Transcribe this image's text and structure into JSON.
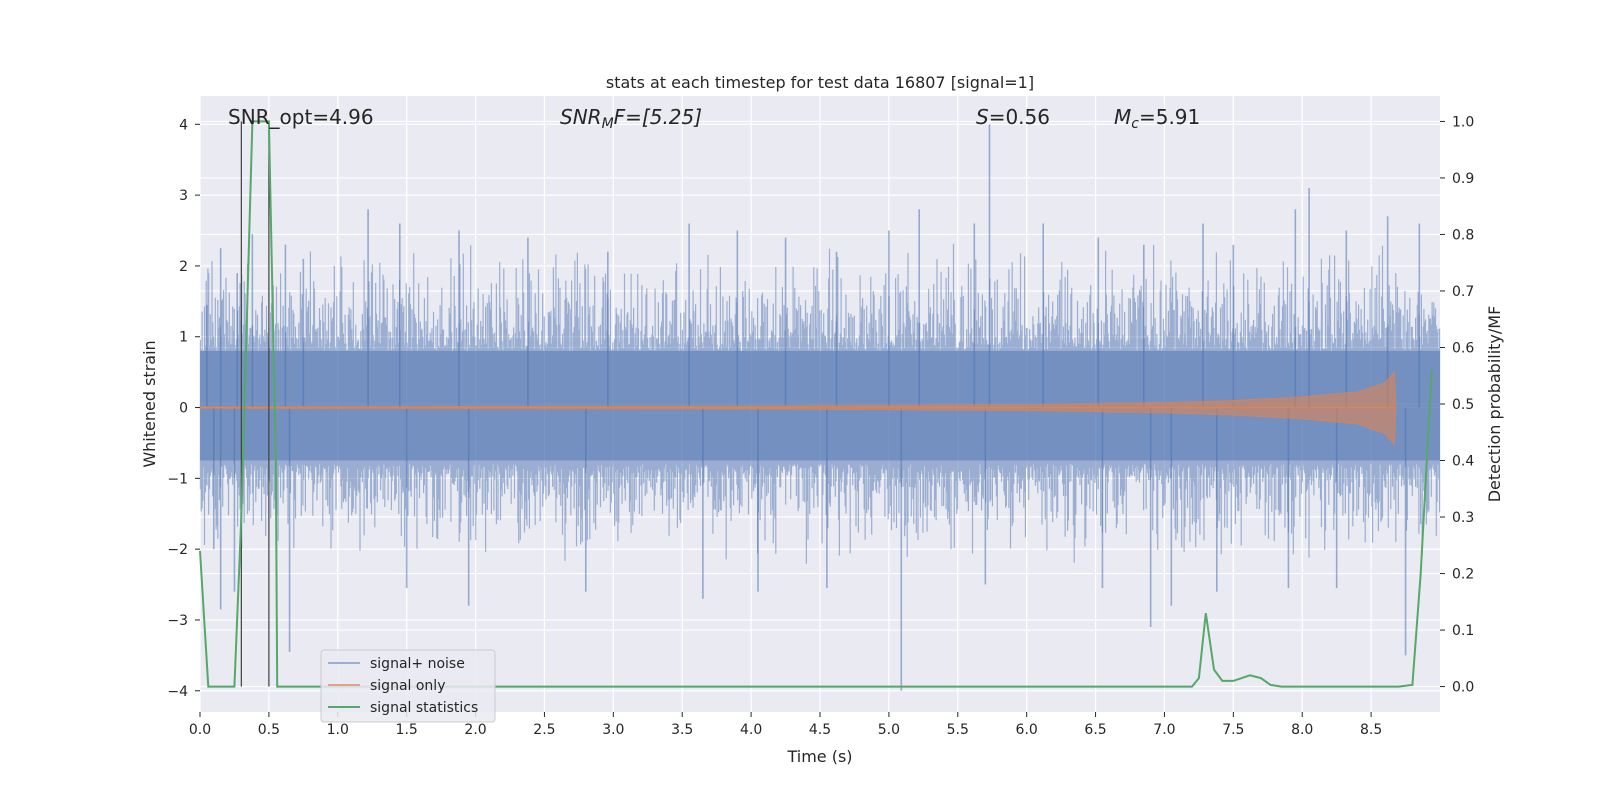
{
  "chart_data": {
    "type": "line",
    "title": "stats at each timestep for test data 16807 [signal=1]",
    "xlabel": "Time (s)",
    "ylabel": "Whitened strain",
    "y2label": "Detection probability/MF",
    "xlim": [
      0,
      9.0
    ],
    "ylim": [
      -4.3,
      4.4
    ],
    "y2lim": [
      -0.045,
      1.045
    ],
    "x_ticks": [
      "0.0",
      "0.5",
      "1.0",
      "1.5",
      "2.0",
      "2.5",
      "3.0",
      "3.5",
      "4.0",
      "4.5",
      "5.0",
      "5.5",
      "6.0",
      "6.5",
      "7.0",
      "7.5",
      "8.0",
      "8.5"
    ],
    "x_tick_values": [
      0,
      0.5,
      1,
      1.5,
      2,
      2.5,
      3,
      3.5,
      4,
      4.5,
      5,
      5.5,
      6,
      6.5,
      7,
      7.5,
      8,
      8.5
    ],
    "y_ticks": [
      "−4",
      "−3",
      "−2",
      "−1",
      "0",
      "1",
      "2",
      "3",
      "4"
    ],
    "y_tick_values": [
      -4,
      -3,
      -2,
      -1,
      0,
      1,
      2,
      3,
      4
    ],
    "y2_ticks": [
      "0.0",
      "0.1",
      "0.2",
      "0.3",
      "0.4",
      "0.5",
      "0.6",
      "0.7",
      "0.8",
      "0.9",
      "1.0"
    ],
    "y2_tick_values": [
      0,
      0.1,
      0.2,
      0.3,
      0.4,
      0.5,
      0.6,
      0.7,
      0.8,
      0.9,
      1.0
    ],
    "grid": true,
    "legend_position": "lower-left",
    "annotations": {
      "snr_opt": "SNR_opt=4.96",
      "snr_mf_sym": "SNR",
      "snr_mf_sub": "M",
      "snr_mf_rest": "F=[5.25]",
      "s_sym": "S",
      "s_rest": "=0.56",
      "mc_sym": "M",
      "mc_sub": "c",
      "mc_rest": "=5.91"
    },
    "vertical_lines_x": [
      0.3,
      0.5
    ],
    "series": [
      {
        "name": "signal+ noise",
        "color": "#4c72b0",
        "description_kind": "noise band",
        "amplitude_typical": 0.8,
        "spikes": [
          {
            "x": 0.05,
            "y": 1.45
          },
          {
            "x": 0.15,
            "y": 2.25
          },
          {
            "x": 0.27,
            "y": 1.9
          },
          {
            "x": 0.38,
            "y": 2.45
          },
          {
            "x": 0.62,
            "y": 2.3
          },
          {
            "x": 0.75,
            "y": 2.1
          },
          {
            "x": 1.22,
            "y": 2.8
          },
          {
            "x": 1.45,
            "y": 2.6
          },
          {
            "x": 1.88,
            "y": 2.5
          },
          {
            "x": 2.38,
            "y": 2.4
          },
          {
            "x": 2.96,
            "y": 2.2
          },
          {
            "x": 3.55,
            "y": 2.6
          },
          {
            "x": 3.9,
            "y": 2.5
          },
          {
            "x": 4.25,
            "y": 2.4
          },
          {
            "x": 4.62,
            "y": 2.2
          },
          {
            "x": 5.0,
            "y": 2.5
          },
          {
            "x": 5.22,
            "y": 2.8
          },
          {
            "x": 5.62,
            "y": 2.6
          },
          {
            "x": 5.73,
            "y": 4.0
          },
          {
            "x": 6.12,
            "y": 2.6
          },
          {
            "x": 6.52,
            "y": 2.4
          },
          {
            "x": 6.85,
            "y": 2.3
          },
          {
            "x": 7.28,
            "y": 2.6
          },
          {
            "x": 7.5,
            "y": 2.3
          },
          {
            "x": 7.95,
            "y": 2.8
          },
          {
            "x": 8.05,
            "y": 3.1
          },
          {
            "x": 8.32,
            "y": 2.5
          },
          {
            "x": 8.62,
            "y": 2.7
          },
          {
            "x": 8.85,
            "y": 2.6
          },
          {
            "x": 0.1,
            "y": -2.0
          },
          {
            "x": 0.15,
            "y": -2.85
          },
          {
            "x": 0.25,
            "y": -2.6
          },
          {
            "x": 0.65,
            "y": -3.45
          },
          {
            "x": 1.5,
            "y": -2.55
          },
          {
            "x": 1.95,
            "y": -2.8
          },
          {
            "x": 2.8,
            "y": -2.6
          },
          {
            "x": 3.65,
            "y": -2.7
          },
          {
            "x": 4.05,
            "y": -2.6
          },
          {
            "x": 4.55,
            "y": -2.55
          },
          {
            "x": 5.09,
            "y": -4.0
          },
          {
            "x": 5.7,
            "y": -2.5
          },
          {
            "x": 6.55,
            "y": -2.55
          },
          {
            "x": 6.9,
            "y": -3.1
          },
          {
            "x": 7.05,
            "y": -2.8
          },
          {
            "x": 7.38,
            "y": -2.6
          },
          {
            "x": 7.9,
            "y": -2.55
          },
          {
            "x": 8.25,
            "y": -2.55
          },
          {
            "x": 8.75,
            "y": -3.5
          }
        ]
      },
      {
        "name": "signal only",
        "color": "#dd8452",
        "description_kind": "chirp envelope",
        "envelope": [
          {
            "x": 0.0,
            "y": 0.01
          },
          {
            "x": 4.0,
            "y": 0.02
          },
          {
            "x": 6.0,
            "y": 0.04
          },
          {
            "x": 7.0,
            "y": 0.07
          },
          {
            "x": 7.5,
            "y": 0.1
          },
          {
            "x": 8.0,
            "y": 0.15
          },
          {
            "x": 8.4,
            "y": 0.22
          },
          {
            "x": 8.6,
            "y": 0.35
          },
          {
            "x": 8.67,
            "y": 0.5
          },
          {
            "x": 8.68,
            "y": 0.0
          }
        ]
      },
      {
        "name": "signal statistics",
        "color": "#55a868",
        "axis": "right",
        "points": [
          {
            "x": 0.0,
            "y": 0.24
          },
          {
            "x": 0.06,
            "y": 0.0
          },
          {
            "x": 0.25,
            "y": 0.0
          },
          {
            "x": 0.3,
            "y": 0.3
          },
          {
            "x": 0.38,
            "y": 1.0
          },
          {
            "x": 0.5,
            "y": 1.0
          },
          {
            "x": 0.55,
            "y": 0.4
          },
          {
            "x": 0.56,
            "y": 0.0
          },
          {
            "x": 7.2,
            "y": 0.0
          },
          {
            "x": 7.25,
            "y": 0.015
          },
          {
            "x": 7.3,
            "y": 0.13
          },
          {
            "x": 7.36,
            "y": 0.03
          },
          {
            "x": 7.42,
            "y": 0.01
          },
          {
            "x": 7.5,
            "y": 0.01
          },
          {
            "x": 7.62,
            "y": 0.02
          },
          {
            "x": 7.7,
            "y": 0.015
          },
          {
            "x": 7.77,
            "y": 0.003
          },
          {
            "x": 7.85,
            "y": 0.0
          },
          {
            "x": 8.3,
            "y": 0.0
          },
          {
            "x": 8.7,
            "y": 0.0
          },
          {
            "x": 8.8,
            "y": 0.003
          },
          {
            "x": 8.86,
            "y": 0.2
          },
          {
            "x": 8.94,
            "y": 0.56
          }
        ]
      }
    ]
  }
}
